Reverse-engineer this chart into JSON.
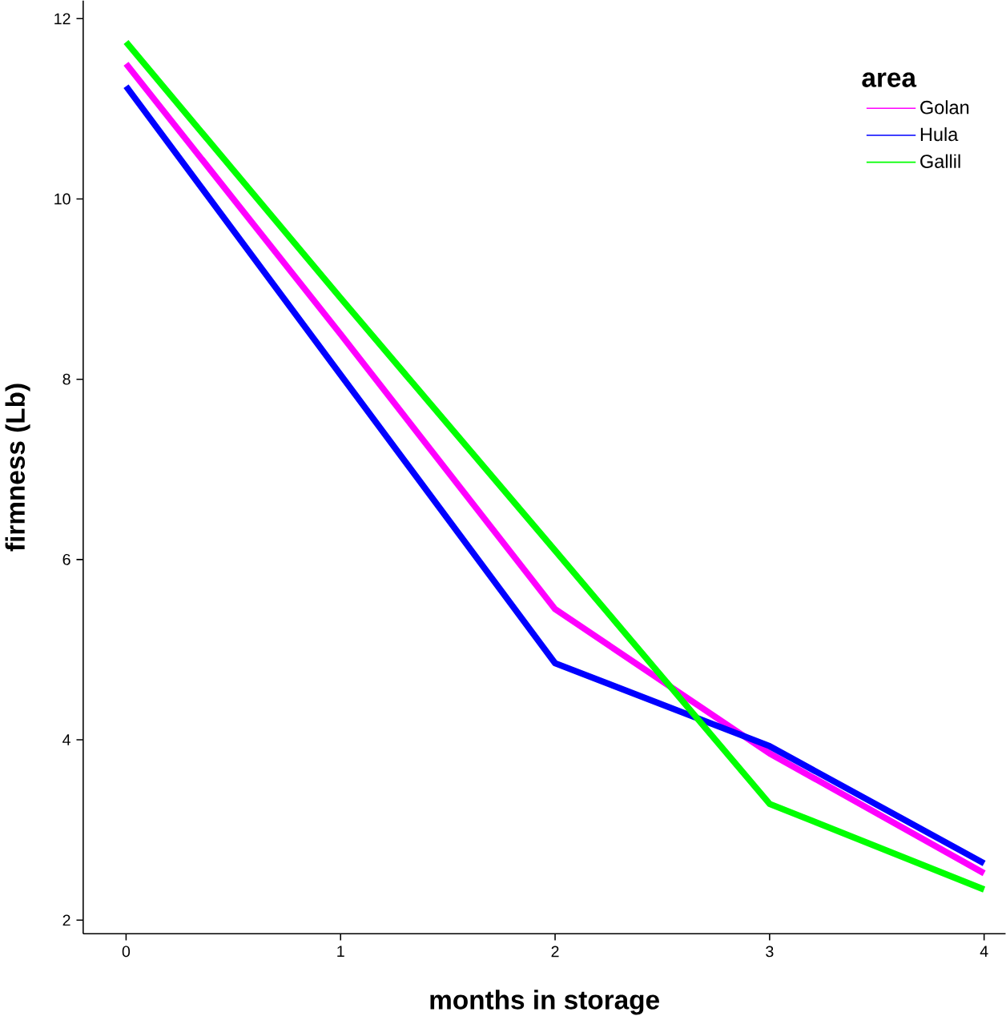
{
  "chart_data": {
    "type": "line",
    "xlabel": "months in storage",
    "ylabel": "firmness (Lb)",
    "legend_title": "area",
    "x": [
      0,
      1,
      2,
      3,
      4
    ],
    "series": [
      {
        "name": "Golan",
        "color": "#ff00ff",
        "values": [
          11.5,
          8.5,
          5.45,
          3.85,
          2.52
        ]
      },
      {
        "name": "Hula",
        "color": "#0000ff",
        "values": [
          11.25,
          8.05,
          4.85,
          3.93,
          2.63
        ]
      },
      {
        "name": "Gallil",
        "color": "#00ff00",
        "values": [
          11.74,
          8.9,
          6.1,
          3.29,
          2.34
        ]
      }
    ],
    "xlim": [
      -0.2,
      4.1
    ],
    "ylim": [
      1.85,
      12.2
    ],
    "xticks": [
      0,
      1,
      2,
      3,
      4
    ],
    "yticks": [
      2,
      4,
      6,
      8,
      10,
      12
    ],
    "legend": "top right",
    "grid": false,
    "line_style": "solid",
    "marker": "none"
  }
}
